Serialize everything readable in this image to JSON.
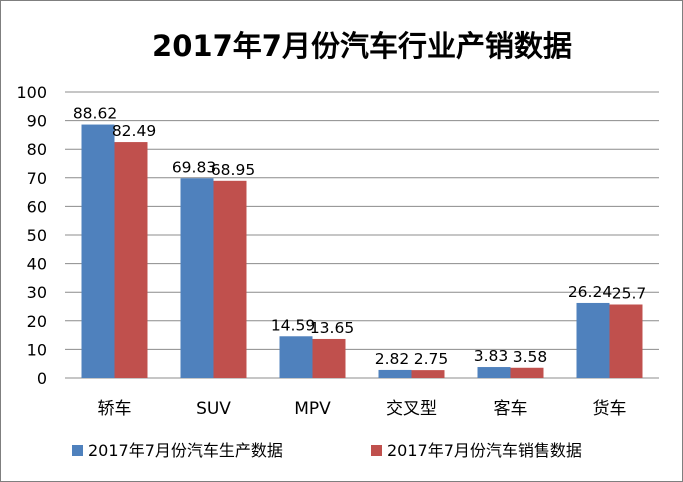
{
  "chart_data": {
    "type": "bar",
    "title": "2017年7月份汽车行业产销数据",
    "categories": [
      "轿车",
      "SUV",
      "MPV",
      "交叉型",
      "客车",
      "货车"
    ],
    "series": [
      {
        "name": "2017年7月份汽车生产数据",
        "color": "#4f81bd",
        "values": [
          88.62,
          69.83,
          14.59,
          2.82,
          3.83,
          26.24
        ],
        "labels": [
          "88.62",
          "69.83",
          "14.59",
          "2.82",
          "3.83",
          "26.24"
        ]
      },
      {
        "name": "2017年7月份汽车销售数据",
        "color": "#c0504d",
        "values": [
          82.49,
          68.95,
          13.65,
          2.75,
          3.58,
          25.7
        ],
        "labels": [
          "82.49",
          "68.95",
          "13.65",
          "2.75",
          "3.58",
          "25.7"
        ]
      }
    ],
    "ylim": [
      0,
      100
    ],
    "yticks": [
      "0",
      "10",
      "20",
      "30",
      "40",
      "50",
      "60",
      "70",
      "80",
      "90",
      "100"
    ],
    "xlabel": "",
    "ylabel": "",
    "grid": true,
    "legend_position": "bottom",
    "gridline_color": "#8c8c8c"
  }
}
